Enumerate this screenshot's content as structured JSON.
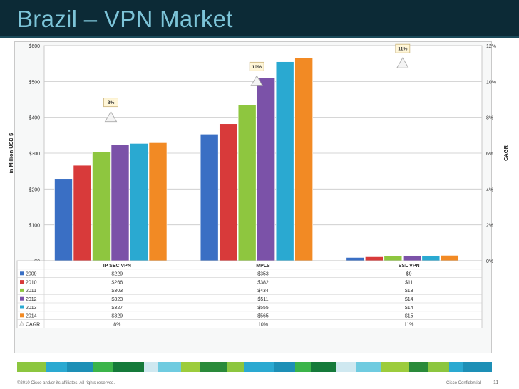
{
  "slide": {
    "title": "Brazil – VPN Market",
    "footer_left": "©2010 Cisco and/or its affiliates. All rights reserved.",
    "footer_right": "Cisco Confidential",
    "page_number": "11"
  },
  "colors": {
    "header_bg": "#0c2a36",
    "title": "#7cc4d8",
    "series": [
      "#3a6fc4",
      "#d83a3a",
      "#8ec63f",
      "#7b52a8",
      "#2aa9d1",
      "#f28a24"
    ],
    "strip": [
      "#8cc63f",
      "#2aa9d1",
      "#1d8fb6",
      "#3bb44a",
      "#157a3a",
      "#cfe8f0",
      "#6fcbe0",
      "#9ccc3c",
      "#2a8a3a"
    ]
  },
  "chart_data": {
    "type": "bar",
    "categories": [
      "IP SEC VPN",
      "MPLS",
      "SSL VPN"
    ],
    "series": [
      {
        "name": "2009",
        "values": [
          229,
          353,
          9
        ]
      },
      {
        "name": "2010",
        "values": [
          266,
          382,
          11
        ]
      },
      {
        "name": "2011",
        "values": [
          303,
          434,
          13
        ]
      },
      {
        "name": "2012",
        "values": [
          323,
          511,
          14
        ]
      },
      {
        "name": "2013",
        "values": [
          327,
          555,
          14
        ]
      },
      {
        "name": "2014",
        "values": [
          329,
          565,
          15
        ]
      }
    ],
    "table_values": [
      [
        "$229",
        "$353",
        "$9"
      ],
      [
        "$266",
        "$382",
        "$11"
      ],
      [
        "$303",
        "$434",
        "$13"
      ],
      [
        "$323",
        "$511",
        "$14"
      ],
      [
        "$327",
        "$555",
        "$14"
      ],
      [
        "$329",
        "$565",
        "$15"
      ]
    ],
    "cagr": {
      "name": "CAGR",
      "values": [
        8,
        10,
        11
      ],
      "labels": [
        "8%",
        "10%",
        "11%"
      ]
    },
    "ylabel": "in Million USD $",
    "y2label": "CAGR",
    "ylim": [
      0,
      600
    ],
    "y2lim": [
      0,
      12
    ],
    "y_ticks": [
      "$0",
      "$100",
      "$200",
      "$300",
      "$400",
      "$500",
      "$600"
    ],
    "y2_ticks": [
      "0%",
      "2%",
      "4%",
      "6%",
      "8%",
      "10%",
      "12%"
    ],
    "grid": true,
    "legend": "data-table"
  }
}
